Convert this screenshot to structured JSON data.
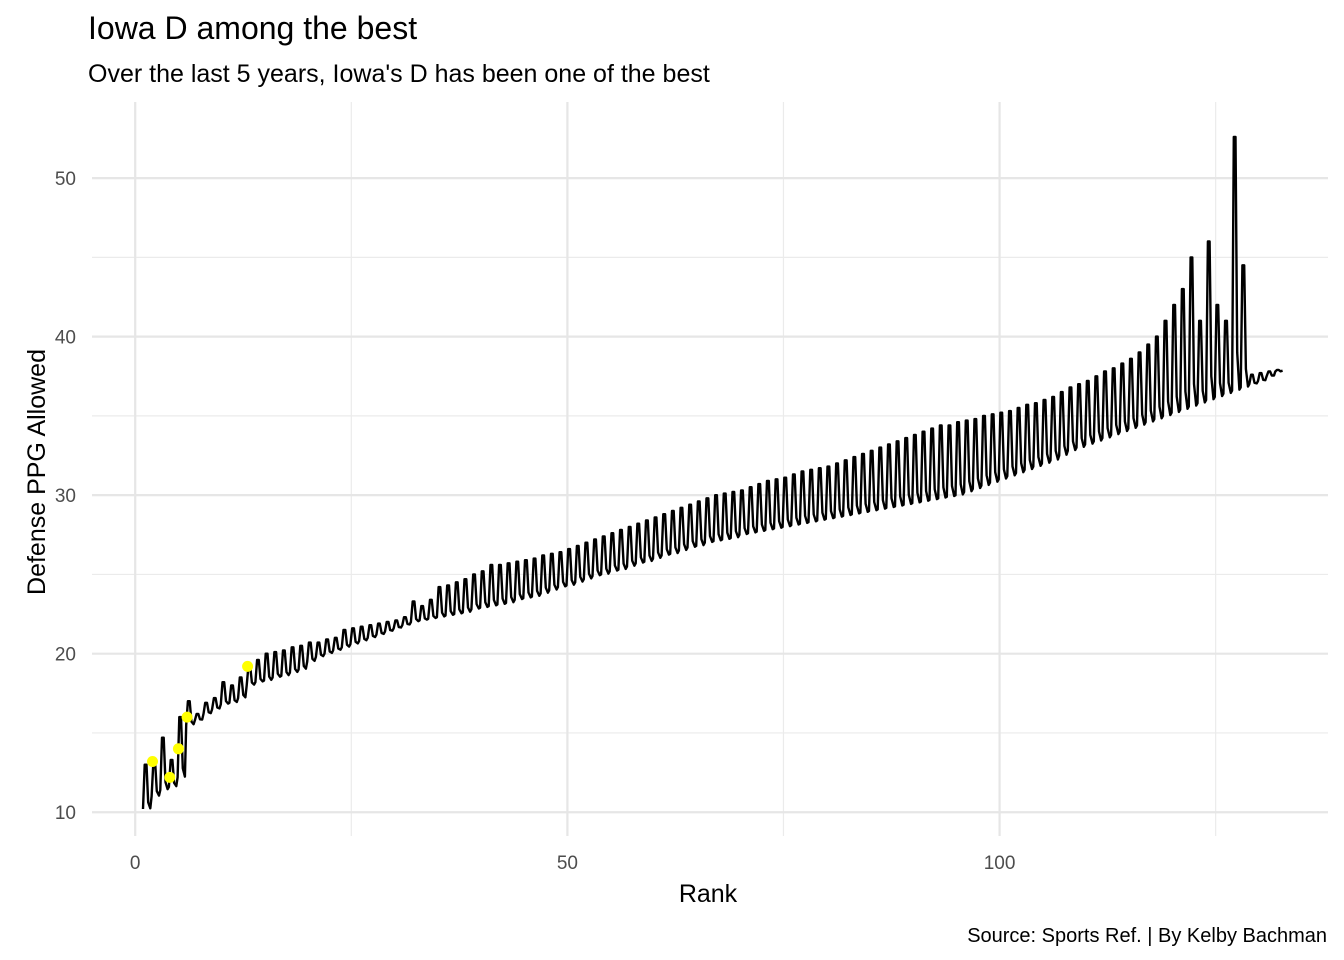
{
  "chart_data": {
    "type": "line",
    "title": "Iowa D among the best",
    "subtitle": "Over the last 5 years, Iowa's D has been one of the best",
    "xlabel": "Rank",
    "ylabel": "Defense PPG Allowed",
    "caption": "Source: Sports Ref. | By Kelby Bachman",
    "xlim": [
      -5,
      138
    ],
    "ylim": [
      8.5,
      54.8
    ],
    "x_ticks": [
      0,
      50,
      100
    ],
    "y_ticks": [
      10,
      20,
      30,
      40,
      50
    ],
    "grid": true,
    "legend": "none",
    "line_color": "#000000",
    "highlight_color": "#ffff00",
    "series": [
      {
        "values": [
          [
            1,
            10.2,
            13.0
          ],
          [
            2,
            11.0,
            13.2
          ],
          [
            3,
            11.4,
            14.7
          ],
          [
            4,
            11.6,
            13.3
          ],
          [
            5,
            12.2,
            16.0
          ],
          [
            6,
            15.5,
            17.0
          ],
          [
            7,
            15.8,
            16.2
          ],
          [
            8,
            16.2,
            16.9
          ],
          [
            9,
            16.5,
            17.2
          ],
          [
            10,
            16.8,
            18.2
          ],
          [
            11,
            16.9,
            18.0
          ],
          [
            12,
            17.2,
            18.5
          ],
          [
            13,
            18.0,
            19.2
          ],
          [
            14,
            18.2,
            19.6
          ],
          [
            15,
            18.3,
            20.0
          ],
          [
            16,
            18.5,
            20.1
          ],
          [
            17,
            18.6,
            20.2
          ],
          [
            18,
            18.8,
            20.4
          ],
          [
            19,
            19.0,
            20.5
          ],
          [
            20,
            19.5,
            20.7
          ],
          [
            21,
            19.8,
            20.7
          ],
          [
            22,
            20.0,
            20.9
          ],
          [
            23,
            20.2,
            21.0
          ],
          [
            24,
            20.4,
            21.5
          ],
          [
            25,
            20.6,
            21.6
          ],
          [
            26,
            20.8,
            21.7
          ],
          [
            27,
            21.0,
            21.8
          ],
          [
            28,
            21.2,
            21.9
          ],
          [
            29,
            21.4,
            22.0
          ],
          [
            30,
            21.6,
            22.1
          ],
          [
            31,
            21.8,
            22.3
          ],
          [
            32,
            22.0,
            23.3
          ],
          [
            33,
            22.1,
            23.0
          ],
          [
            34,
            22.2,
            23.4
          ],
          [
            35,
            22.3,
            24.2
          ],
          [
            36,
            22.4,
            24.3
          ],
          [
            37,
            22.5,
            24.5
          ],
          [
            38,
            22.6,
            24.7
          ],
          [
            39,
            22.8,
            25.0
          ],
          [
            40,
            22.9,
            25.2
          ],
          [
            41,
            23.0,
            25.6
          ],
          [
            42,
            23.1,
            25.6
          ],
          [
            43,
            23.2,
            25.7
          ],
          [
            44,
            23.4,
            25.8
          ],
          [
            45,
            23.5,
            25.9
          ],
          [
            46,
            23.6,
            26.0
          ],
          [
            47,
            23.8,
            26.2
          ],
          [
            48,
            24.0,
            26.3
          ],
          [
            49,
            24.2,
            26.4
          ],
          [
            50,
            24.3,
            26.6
          ],
          [
            51,
            24.5,
            26.8
          ],
          [
            52,
            24.7,
            27.0
          ],
          [
            53,
            24.9,
            27.2
          ],
          [
            54,
            25.0,
            27.4
          ],
          [
            55,
            25.2,
            27.6
          ],
          [
            56,
            25.3,
            27.8
          ],
          [
            57,
            25.5,
            28.0
          ],
          [
            58,
            25.7,
            28.2
          ],
          [
            59,
            25.8,
            28.4
          ],
          [
            60,
            26.0,
            28.6
          ],
          [
            61,
            26.2,
            28.8
          ],
          [
            62,
            26.3,
            29.0
          ],
          [
            63,
            26.5,
            29.2
          ],
          [
            64,
            26.7,
            29.4
          ],
          [
            65,
            26.8,
            29.6
          ],
          [
            66,
            27.0,
            29.8
          ],
          [
            67,
            27.1,
            30.0
          ],
          [
            68,
            27.2,
            30.1
          ],
          [
            69,
            27.3,
            30.2
          ],
          [
            70,
            27.5,
            30.3
          ],
          [
            71,
            27.6,
            30.5
          ],
          [
            72,
            27.7,
            30.7
          ],
          [
            73,
            27.8,
            30.9
          ],
          [
            74,
            27.9,
            31.0
          ],
          [
            75,
            28.0,
            31.1
          ],
          [
            76,
            28.1,
            31.3
          ],
          [
            77,
            28.2,
            31.5
          ],
          [
            78,
            28.3,
            31.6
          ],
          [
            79,
            28.4,
            31.7
          ],
          [
            80,
            28.5,
            31.8
          ],
          [
            81,
            28.6,
            32.0
          ],
          [
            82,
            28.7,
            32.2
          ],
          [
            83,
            28.8,
            32.4
          ],
          [
            84,
            28.9,
            32.6
          ],
          [
            85,
            29.0,
            32.8
          ],
          [
            86,
            29.1,
            33.0
          ],
          [
            87,
            29.2,
            33.2
          ],
          [
            88,
            29.3,
            33.4
          ],
          [
            89,
            29.4,
            33.6
          ],
          [
            90,
            29.5,
            33.8
          ],
          [
            91,
            29.6,
            34.0
          ],
          [
            92,
            29.7,
            34.2
          ],
          [
            93,
            29.8,
            34.4
          ],
          [
            94,
            29.9,
            34.4
          ],
          [
            95,
            30.0,
            34.6
          ],
          [
            96,
            30.2,
            34.7
          ],
          [
            97,
            30.4,
            34.8
          ],
          [
            98,
            30.6,
            35.0
          ],
          [
            99,
            30.8,
            35.1
          ],
          [
            100,
            31.0,
            35.2
          ],
          [
            101,
            31.2,
            35.3
          ],
          [
            102,
            31.4,
            35.5
          ],
          [
            103,
            31.6,
            35.7
          ],
          [
            104,
            31.8,
            35.8
          ],
          [
            105,
            32.0,
            36.0
          ],
          [
            106,
            32.2,
            36.2
          ],
          [
            107,
            32.5,
            36.5
          ],
          [
            108,
            32.8,
            36.8
          ],
          [
            109,
            33.0,
            37.0
          ],
          [
            110,
            33.2,
            37.2
          ],
          [
            111,
            33.4,
            37.5
          ],
          [
            112,
            33.6,
            37.8
          ],
          [
            113,
            33.8,
            38.0
          ],
          [
            114,
            34.0,
            38.3
          ],
          [
            115,
            34.2,
            38.6
          ],
          [
            116,
            34.4,
            39.0
          ],
          [
            117,
            34.6,
            39.5
          ],
          [
            118,
            34.8,
            40.0
          ],
          [
            119,
            35.0,
            41.0
          ],
          [
            120,
            35.2,
            42.0
          ],
          [
            121,
            35.4,
            43.0
          ],
          [
            122,
            35.6,
            45.0
          ],
          [
            123,
            35.8,
            41.0
          ],
          [
            124,
            36.0,
            46.0
          ],
          [
            125,
            36.2,
            42.0
          ],
          [
            126,
            36.4,
            41.0
          ],
          [
            127,
            36.6,
            52.6
          ],
          [
            128,
            36.8,
            44.5
          ],
          [
            129,
            37.0,
            37.6
          ],
          [
            130,
            37.2,
            37.7
          ],
          [
            131,
            37.5,
            37.8
          ],
          [
            132,
            37.8,
            37.9
          ]
        ]
      }
    ],
    "points": [
      {
        "x": 2,
        "y": 13.2
      },
      {
        "x": 4,
        "y": 12.2
      },
      {
        "x": 5,
        "y": 14.0
      },
      {
        "x": 6,
        "y": 16.0
      },
      {
        "x": 13,
        "y": 19.2
      }
    ]
  }
}
